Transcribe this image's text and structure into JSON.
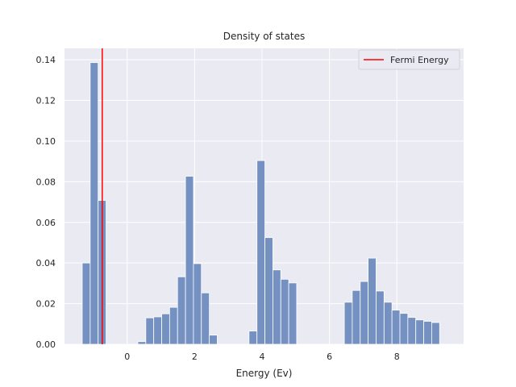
{
  "chart_data": {
    "type": "bar",
    "title": "Density of states",
    "xlabel": "Energy (Ev)",
    "ylabel": "",
    "xlim": [
      -1.86,
      9.98
    ],
    "ylim": [
      0,
      0.1456
    ],
    "xticks": [
      0,
      2,
      4,
      6,
      8
    ],
    "yticks": [
      0.0,
      0.02,
      0.04,
      0.06,
      0.08,
      0.1,
      0.12,
      0.14
    ],
    "ytick_labels": [
      "0.00",
      "0.02",
      "0.04",
      "0.06",
      "0.08",
      "0.10",
      "0.12",
      "0.14"
    ],
    "grid": true,
    "legend": {
      "placement": "top-right",
      "entries": [
        {
          "name": "Fermi Energy",
          "color": "#ff0000"
        }
      ]
    },
    "fermi_energy": -0.74,
    "bin_width": 0.2356,
    "bins": [
      {
        "x": -1.334,
        "value": 0.04
      },
      {
        "x": -1.098,
        "value": 0.1386
      },
      {
        "x": -0.862,
        "value": 0.0708
      },
      {
        "x": 0.316,
        "value": 0.0013
      },
      {
        "x": 0.552,
        "value": 0.013
      },
      {
        "x": 0.787,
        "value": 0.0135
      },
      {
        "x": 1.023,
        "value": 0.015
      },
      {
        "x": 1.258,
        "value": 0.0182
      },
      {
        "x": 1.494,
        "value": 0.0332
      },
      {
        "x": 1.73,
        "value": 0.0827
      },
      {
        "x": 1.965,
        "value": 0.0397
      },
      {
        "x": 2.201,
        "value": 0.0253
      },
      {
        "x": 2.436,
        "value": 0.0045
      },
      {
        "x": 3.614,
        "value": 0.0065
      },
      {
        "x": 3.85,
        "value": 0.0904
      },
      {
        "x": 4.086,
        "value": 0.0525
      },
      {
        "x": 4.321,
        "value": 0.0366
      },
      {
        "x": 4.557,
        "value": 0.032
      },
      {
        "x": 4.792,
        "value": 0.0302
      },
      {
        "x": 6.442,
        "value": 0.0207
      },
      {
        "x": 6.677,
        "value": 0.0265
      },
      {
        "x": 6.913,
        "value": 0.0309
      },
      {
        "x": 7.148,
        "value": 0.0424
      },
      {
        "x": 7.384,
        "value": 0.0262
      },
      {
        "x": 7.62,
        "value": 0.0207
      },
      {
        "x": 7.855,
        "value": 0.0168
      },
      {
        "x": 8.091,
        "value": 0.0152
      },
      {
        "x": 8.326,
        "value": 0.0132
      },
      {
        "x": 8.562,
        "value": 0.012
      },
      {
        "x": 8.798,
        "value": 0.0113
      },
      {
        "x": 9.033,
        "value": 0.0107
      }
    ],
    "colors": {
      "bar_fill": "#7591c2",
      "bar_edge": "#ffffff",
      "fermi_line": "#ff0000",
      "plot_background": "#eaeaf2",
      "grid": "#ffffff"
    }
  }
}
